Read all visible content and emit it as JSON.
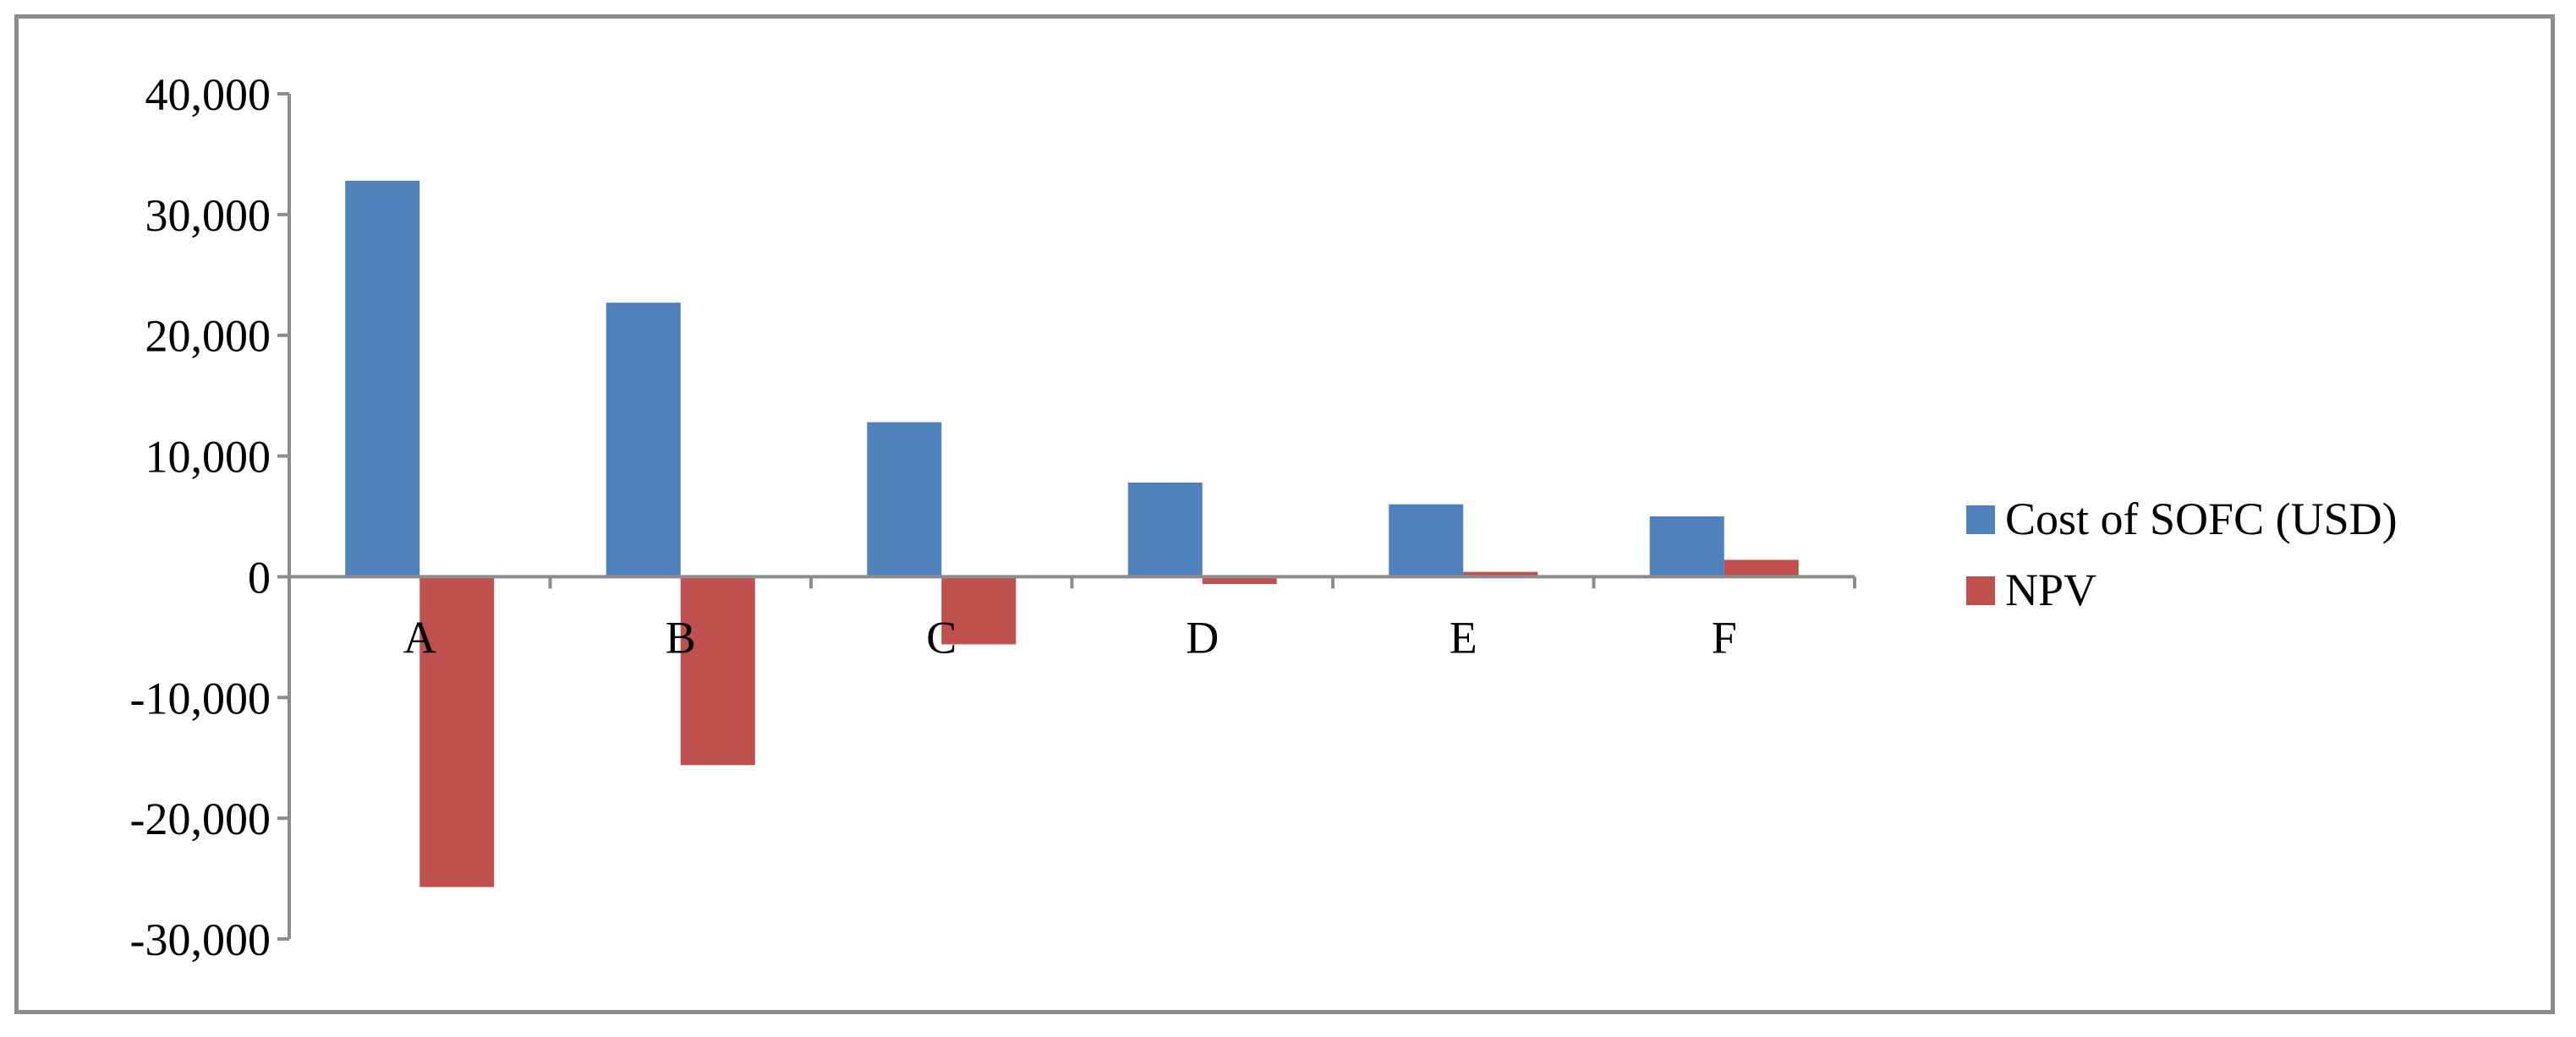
{
  "chart_data": {
    "type": "bar",
    "categories": [
      "A",
      "B",
      "C",
      "D",
      "E",
      "F"
    ],
    "series": [
      {
        "name": "Cost of SOFC (USD)",
        "color": "#4f81bd",
        "values": [
          32800,
          22700,
          12800,
          7800,
          6000,
          5000
        ]
      },
      {
        "name": "NPV",
        "color": "#c0504d",
        "values": [
          -25700,
          -15600,
          -5600,
          -600,
          400,
          1400
        ]
      }
    ],
    "y_ticks": [
      "40,000",
      "30,000",
      "20,000",
      "10,000",
      "0",
      "-10,000",
      "-20,000",
      "-30,000"
    ],
    "ylim": [
      -30000,
      40000
    ],
    "grid": false,
    "legend_position": "right"
  }
}
